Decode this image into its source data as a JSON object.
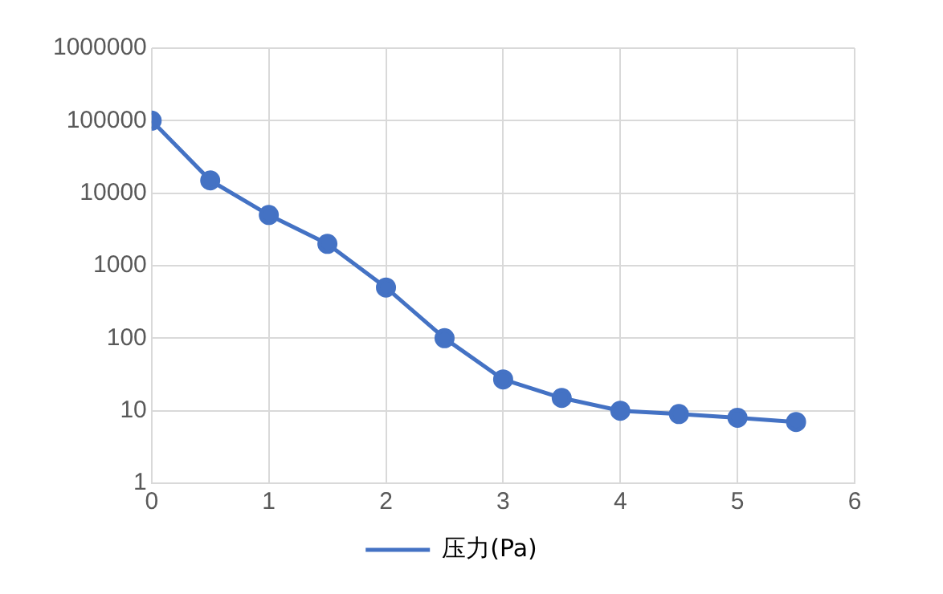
{
  "chart_data": {
    "type": "line",
    "x": [
      0,
      0.5,
      1,
      1.5,
      2,
      2.5,
      3,
      3.5,
      4,
      4.5,
      5,
      5.5
    ],
    "series": [
      {
        "name": "压力(Pa)",
        "color": "#4472c4",
        "values": [
          100000,
          15000,
          5000,
          2000,
          500,
          100,
          27,
          15,
          10,
          9,
          8,
          7
        ]
      }
    ],
    "xlim": [
      0,
      6
    ],
    "xticks": [
      0,
      1,
      2,
      3,
      4,
      5,
      6
    ],
    "ylim": [
      1,
      1000000
    ],
    "yticks": [
      1,
      10,
      100,
      1000,
      10000,
      100000,
      1000000
    ],
    "log": "y",
    "grid": true,
    "legend": "bottom",
    "marker": "circle",
    "line_style": "solid"
  }
}
